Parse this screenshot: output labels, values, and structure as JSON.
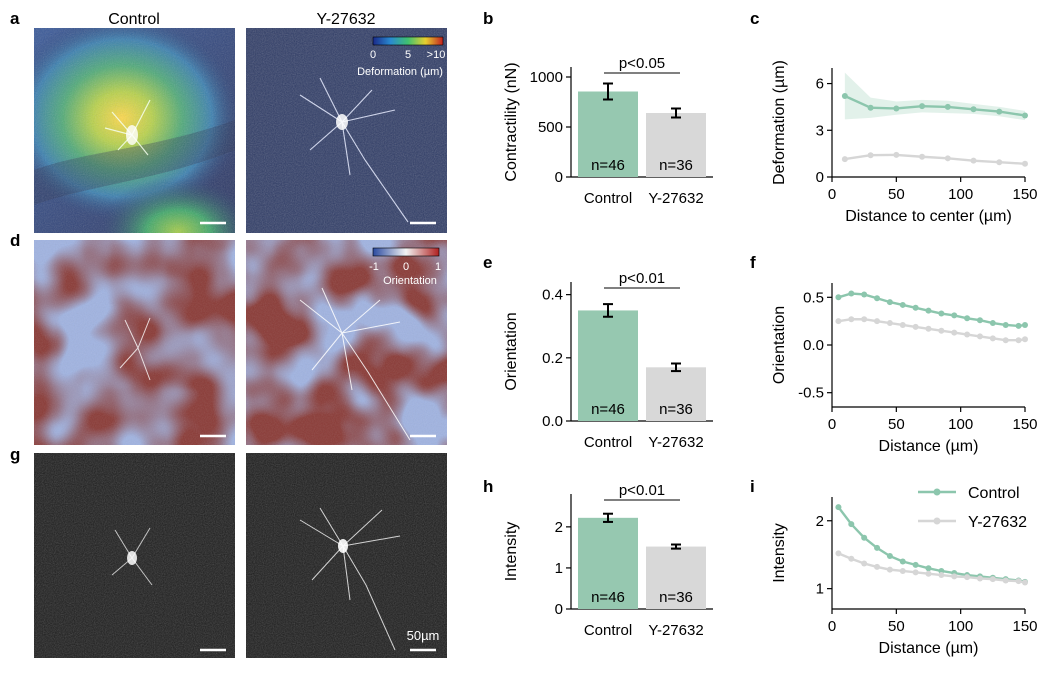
{
  "panel_letters": [
    "a",
    "b",
    "c",
    "d",
    "e",
    "f",
    "g",
    "h",
    "i"
  ],
  "image_panels": {
    "column_titles": [
      "Control",
      "Y-27632"
    ],
    "deformation_colorbar": {
      "ticks": [
        "0",
        "5",
        ">10"
      ],
      "label": "Deformation (µm)"
    },
    "orientation_colorbar": {
      "ticks": [
        "-1",
        "0",
        "1"
      ],
      "label": "Orientation"
    },
    "scalebar_label": "50µm"
  },
  "colors": {
    "control": "#96c8b0",
    "y27632": "#d8d8d8",
    "control_line": "#8cc6ad",
    "y27632_line": "#d6d6d6"
  },
  "chart_data": [
    {
      "id": "b",
      "type": "bar",
      "categories": [
        "Control",
        "Y-27632"
      ],
      "values": [
        855,
        640
      ],
      "errors": [
        80,
        45
      ],
      "counts": [
        "n=46",
        "n=36"
      ],
      "ylabel": "Contractility (nN)",
      "ylim": [
        0,
        1100
      ],
      "yticks": [
        0,
        500,
        1000
      ],
      "significance": "p<0.05"
    },
    {
      "id": "c",
      "type": "line",
      "xlabel": "Distance to center (µm)",
      "ylabel": "Deformation (µm)",
      "xlim": [
        0,
        150
      ],
      "ylim": [
        0,
        7
      ],
      "xticks": [
        0,
        50,
        100,
        150
      ],
      "yticks": [
        0,
        3,
        6
      ],
      "series": [
        {
          "name": "Control",
          "x": [
            10,
            30,
            50,
            70,
            90,
            110,
            130,
            150
          ],
          "y": [
            5.2,
            4.45,
            4.4,
            4.55,
            4.5,
            4.35,
            4.2,
            3.95
          ],
          "band_low": [
            3.7,
            3.8,
            4.0,
            4.15,
            4.1,
            4.05,
            3.9,
            3.65
          ],
          "band_high": [
            6.7,
            5.1,
            4.85,
            4.95,
            4.9,
            4.7,
            4.5,
            4.25
          ]
        },
        {
          "name": "Y-27632",
          "x": [
            10,
            30,
            50,
            70,
            90,
            110,
            130,
            150
          ],
          "y": [
            1.15,
            1.4,
            1.42,
            1.3,
            1.2,
            1.05,
            0.95,
            0.85
          ]
        }
      ]
    },
    {
      "id": "e",
      "type": "bar",
      "categories": [
        "Control",
        "Y-27632"
      ],
      "values": [
        0.35,
        0.17
      ],
      "errors": [
        0.02,
        0.012
      ],
      "counts": [
        "n=46",
        "n=36"
      ],
      "ylabel": "Orientation",
      "ylim": [
        0,
        0.44
      ],
      "yticks": [
        0.0,
        0.2,
        0.4
      ],
      "significance": "p<0.01"
    },
    {
      "id": "f",
      "type": "line",
      "xlabel": "Distance (µm)",
      "ylabel": "Orientation",
      "xlim": [
        0,
        150
      ],
      "ylim": [
        -0.65,
        0.65
      ],
      "xticks": [
        0,
        50,
        100,
        150
      ],
      "yticks": [
        -0.5,
        0.0,
        0.5
      ],
      "series": [
        {
          "name": "Control",
          "x": [
            5,
            15,
            25,
            35,
            45,
            55,
            65,
            75,
            85,
            95,
            105,
            115,
            125,
            135,
            145,
            150
          ],
          "y": [
            0.5,
            0.54,
            0.53,
            0.49,
            0.45,
            0.42,
            0.39,
            0.36,
            0.33,
            0.31,
            0.28,
            0.26,
            0.23,
            0.21,
            0.2,
            0.21
          ]
        },
        {
          "name": "Y-27632",
          "x": [
            5,
            15,
            25,
            35,
            45,
            55,
            65,
            75,
            85,
            95,
            105,
            115,
            125,
            135,
            145,
            150
          ],
          "y": [
            0.25,
            0.27,
            0.27,
            0.25,
            0.23,
            0.21,
            0.19,
            0.17,
            0.15,
            0.13,
            0.11,
            0.09,
            0.07,
            0.05,
            0.05,
            0.06
          ]
        }
      ]
    },
    {
      "id": "h",
      "type": "bar",
      "categories": [
        "Control",
        "Y-27632"
      ],
      "values": [
        2.22,
        1.52
      ],
      "errors": [
        0.1,
        0.05
      ],
      "counts": [
        "n=46",
        "n=36"
      ],
      "ylabel": "Intensity",
      "ylim": [
        0,
        2.8
      ],
      "yticks": [
        0,
        1,
        2
      ],
      "significance": "p<0.01"
    },
    {
      "id": "i",
      "type": "line",
      "xlabel": "Distance (µm)",
      "ylabel": "Intensity",
      "xlim": [
        0,
        150
      ],
      "ylim": [
        0.7,
        2.35
      ],
      "xticks": [
        0,
        50,
        100,
        150
      ],
      "yticks": [
        1,
        2
      ],
      "legend": "top-right",
      "series": [
        {
          "name": "Control",
          "x": [
            5,
            15,
            25,
            35,
            45,
            55,
            65,
            75,
            85,
            95,
            105,
            115,
            125,
            135,
            145,
            150
          ],
          "y": [
            2.2,
            1.95,
            1.75,
            1.6,
            1.48,
            1.4,
            1.35,
            1.3,
            1.26,
            1.23,
            1.2,
            1.18,
            1.16,
            1.14,
            1.12,
            1.1
          ]
        },
        {
          "name": "Y-27632",
          "x": [
            5,
            15,
            25,
            35,
            45,
            55,
            65,
            75,
            85,
            95,
            105,
            115,
            125,
            135,
            145,
            150
          ],
          "y": [
            1.52,
            1.44,
            1.37,
            1.32,
            1.28,
            1.26,
            1.24,
            1.22,
            1.2,
            1.18,
            1.17,
            1.15,
            1.14,
            1.12,
            1.11,
            1.09
          ]
        }
      ]
    }
  ]
}
